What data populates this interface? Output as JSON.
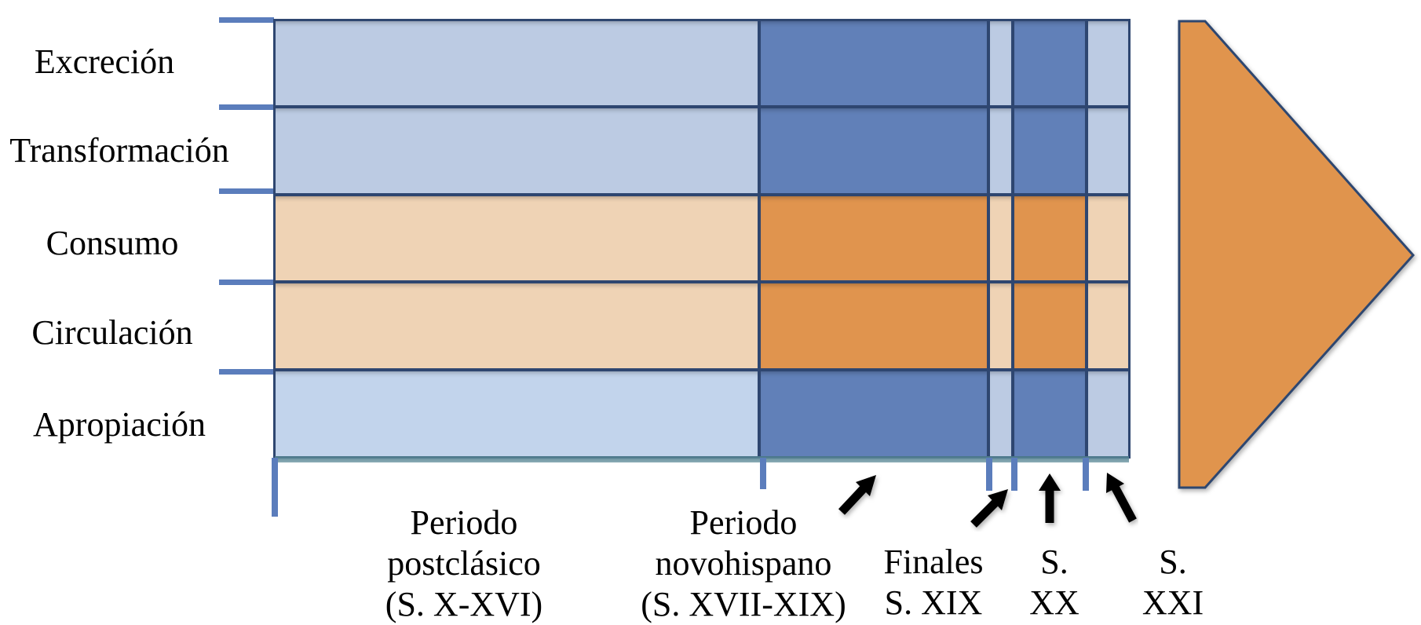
{
  "diagram": {
    "rows": [
      {
        "label": "Excreción",
        "scheme": "blue"
      },
      {
        "label": "Transformación",
        "scheme": "blue"
      },
      {
        "label": "Consumo",
        "scheme": "orange"
      },
      {
        "label": "Circulación",
        "scheme": "orange"
      },
      {
        "label": "Apropiación",
        "scheme": "blue"
      }
    ],
    "periods": [
      {
        "lines": [
          "Periodo",
          "postclásico",
          "(S. X-XVI)"
        ],
        "intensity": "light"
      },
      {
        "lines": [
          "Periodo",
          "novohispano",
          "(S. XVII-XIX)"
        ],
        "intensity": "dark"
      },
      {
        "lines": [
          "Finales",
          "S. XIX"
        ],
        "intensity": "light"
      },
      {
        "lines": [
          "S.",
          "XX"
        ],
        "intensity": "dark"
      },
      {
        "lines": [
          "S.",
          "XXI"
        ],
        "intensity": "light"
      }
    ],
    "future_arrow": {
      "shape": "pentagon-arrow-right"
    }
  },
  "colors": {
    "blue_light": "#BCCBE3",
    "blue_light_alt": "#C2D4EC",
    "blue_dark": "#6180B8",
    "orange_light": "#EFD3B5",
    "orange_dark": "#E0944E",
    "border": "#2E4670",
    "tick": "#5B7DBC",
    "pointer": "#000000"
  }
}
